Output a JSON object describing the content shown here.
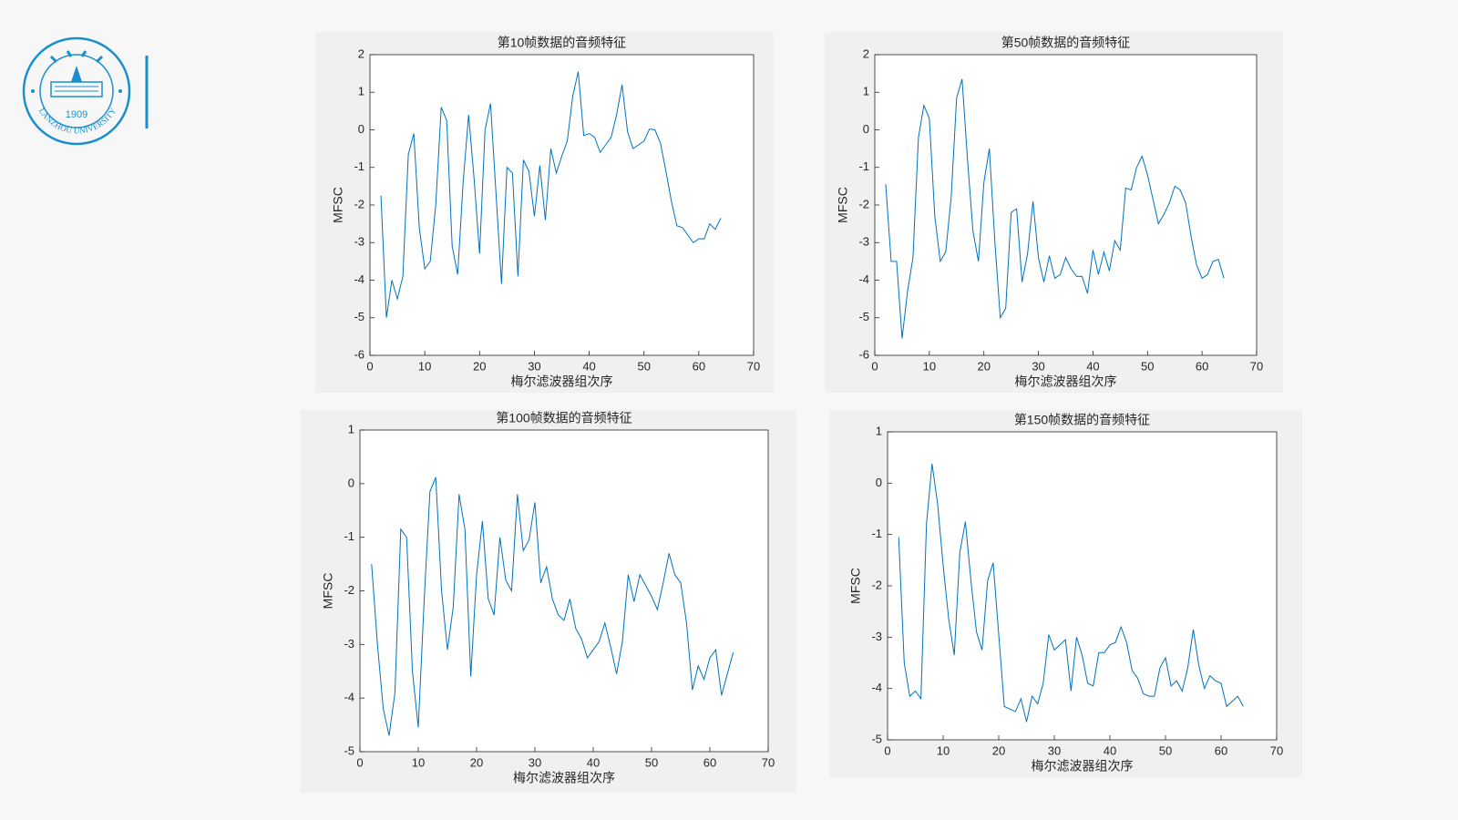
{
  "logo": {
    "year": "1909",
    "text": "LANZHOU    UNIVERSITY"
  },
  "chart_data": [
    {
      "type": "line",
      "title": "第10帧数据的音频特征",
      "xlabel": "梅尔滤波器组次序",
      "ylabel": "MFSC",
      "color": "#0072bd",
      "xlim": [
        0,
        70
      ],
      "xticks": [
        0,
        10,
        20,
        30,
        40,
        50,
        60,
        70
      ],
      "ylim": [
        -6,
        2
      ],
      "yticks": [
        -6,
        -5,
        -4,
        -3,
        -2,
        -1,
        0,
        1,
        2
      ],
      "x": [
        2,
        3,
        4,
        5,
        6,
        7,
        8,
        9,
        10,
        11,
        12,
        13,
        14,
        15,
        16,
        17,
        18,
        19,
        20,
        21,
        22,
        23,
        24,
        25,
        26,
        27,
        28,
        29,
        30,
        31,
        32,
        33,
        34,
        35,
        36,
        37,
        38,
        39,
        40,
        41,
        42,
        43,
        44,
        45,
        46,
        47,
        48,
        49,
        50,
        51,
        52,
        53,
        54,
        55,
        56,
        57,
        58,
        59,
        60,
        61,
        62,
        63,
        64
      ],
      "values": [
        -1.75,
        -5.0,
        -4.0,
        -4.5,
        -3.9,
        -0.65,
        -0.1,
        -2.6,
        -3.7,
        -3.5,
        -2.0,
        0.6,
        0.25,
        -3.1,
        -3.85,
        -1.4,
        0.4,
        -1.3,
        -3.3,
        0.0,
        0.7,
        -1.7,
        -4.1,
        -1.0,
        -1.15,
        -3.9,
        -0.8,
        -1.1,
        -2.3,
        -0.95,
        -2.4,
        -0.5,
        -1.15,
        -0.7,
        -0.3,
        0.9,
        1.55,
        -0.15,
        -0.1,
        -0.2,
        -0.6,
        -0.4,
        -0.2,
        0.4,
        1.2,
        -0.05,
        -0.5,
        -0.4,
        -0.3,
        0.02,
        0.0,
        -0.35,
        -1.1,
        -1.9,
        -2.55,
        -2.6,
        -2.8,
        -3.0,
        -2.9,
        -2.9,
        -2.5,
        -2.65,
        -2.35
      ]
    },
    {
      "type": "line",
      "title": "第50帧数据的音频特征",
      "xlabel": "梅尔滤波器组次序",
      "ylabel": "MFSC",
      "color": "#0072bd",
      "xlim": [
        0,
        70
      ],
      "xticks": [
        0,
        10,
        20,
        30,
        40,
        50,
        60,
        70
      ],
      "ylim": [
        -6,
        2
      ],
      "yticks": [
        -6,
        -5,
        -4,
        -3,
        -2,
        -1,
        0,
        1,
        2
      ],
      "x": [
        2,
        3,
        4,
        5,
        6,
        7,
        8,
        9,
        10,
        11,
        12,
        13,
        14,
        15,
        16,
        17,
        18,
        19,
        20,
        21,
        22,
        23,
        24,
        25,
        26,
        27,
        28,
        29,
        30,
        31,
        32,
        33,
        34,
        35,
        36,
        37,
        38,
        39,
        40,
        41,
        42,
        43,
        44,
        45,
        46,
        47,
        48,
        49,
        50,
        51,
        52,
        53,
        54,
        55,
        56,
        57,
        58,
        59,
        60,
        61,
        62,
        63,
        64
      ],
      "values": [
        -1.45,
        -3.5,
        -3.5,
        -5.55,
        -4.3,
        -3.4,
        -0.2,
        0.65,
        0.3,
        -2.3,
        -3.5,
        -3.25,
        -1.8,
        0.85,
        1.35,
        -0.8,
        -2.7,
        -3.5,
        -1.4,
        -0.5,
        -2.95,
        -5.0,
        -4.75,
        -2.2,
        -2.1,
        -4.05,
        -3.3,
        -1.9,
        -3.4,
        -4.05,
        -3.35,
        -3.95,
        -3.85,
        -3.4,
        -3.7,
        -3.9,
        -3.9,
        -4.35,
        -3.2,
        -3.85,
        -3.25,
        -3.75,
        -2.95,
        -3.2,
        -1.55,
        -1.6,
        -1.0,
        -0.7,
        -1.2,
        -1.85,
        -2.5,
        -2.25,
        -1.95,
        -1.5,
        -1.6,
        -1.95,
        -2.85,
        -3.6,
        -3.95,
        -3.85,
        -3.5,
        -3.45,
        -3.95
      ]
    },
    {
      "type": "line",
      "title": "第100帧数据的音频特征",
      "xlabel": "梅尔滤波器组次序",
      "ylabel": "MFSC",
      "color": "#0072bd",
      "xlim": [
        0,
        70
      ],
      "xticks": [
        0,
        10,
        20,
        30,
        40,
        50,
        60,
        70
      ],
      "ylim": [
        -5,
        1
      ],
      "yticks": [
        -5,
        -4,
        -3,
        -2,
        -1,
        0,
        1
      ],
      "x": [
        2,
        3,
        4,
        5,
        6,
        7,
        8,
        9,
        10,
        11,
        12,
        13,
        14,
        15,
        16,
        17,
        18,
        19,
        20,
        21,
        22,
        23,
        24,
        25,
        26,
        27,
        28,
        29,
        30,
        31,
        32,
        33,
        34,
        35,
        36,
        37,
        38,
        39,
        40,
        41,
        42,
        43,
        44,
        45,
        46,
        47,
        48,
        49,
        50,
        51,
        52,
        53,
        54,
        55,
        56,
        57,
        58,
        59,
        60,
        61,
        62,
        63,
        64
      ],
      "values": [
        -1.5,
        -3.0,
        -4.2,
        -4.7,
        -3.9,
        -0.85,
        -1.0,
        -3.5,
        -4.55,
        -2.2,
        -0.15,
        0.12,
        -2.0,
        -3.1,
        -2.3,
        -0.2,
        -0.85,
        -3.6,
        -1.7,
        -0.7,
        -2.15,
        -2.45,
        -1.0,
        -1.8,
        -2.0,
        -0.2,
        -1.25,
        -1.05,
        -0.35,
        -1.85,
        -1.55,
        -2.15,
        -2.45,
        -2.55,
        -2.15,
        -2.7,
        -2.9,
        -3.25,
        -3.1,
        -2.95,
        -2.6,
        -3.05,
        -3.55,
        -2.95,
        -1.7,
        -2.2,
        -1.7,
        -1.9,
        -2.1,
        -2.35,
        -1.85,
        -1.3,
        -1.7,
        -1.85,
        -2.6,
        -3.85,
        -3.4,
        -3.65,
        -3.25,
        -3.1,
        -3.95,
        -3.55,
        -3.15
      ]
    },
    {
      "type": "line",
      "title": "第150帧数据的音频特征",
      "xlabel": "梅尔滤波器组次序",
      "ylabel": "MFSC",
      "color": "#0072bd",
      "xlim": [
        0,
        70
      ],
      "xticks": [
        0,
        10,
        20,
        30,
        40,
        50,
        60,
        70
      ],
      "ylim": [
        -5,
        1
      ],
      "yticks": [
        -5,
        -4,
        -3,
        -2,
        -1,
        0,
        1
      ],
      "x": [
        2,
        3,
        4,
        5,
        6,
        7,
        8,
        9,
        10,
        11,
        12,
        13,
        14,
        15,
        16,
        17,
        18,
        19,
        20,
        21,
        22,
        23,
        24,
        25,
        26,
        27,
        28,
        29,
        30,
        31,
        32,
        33,
        34,
        35,
        36,
        37,
        38,
        39,
        40,
        41,
        42,
        43,
        44,
        45,
        46,
        47,
        48,
        49,
        50,
        51,
        52,
        53,
        54,
        55,
        56,
        57,
        58,
        59,
        60,
        61,
        62,
        63,
        64
      ],
      "values": [
        -1.05,
        -3.5,
        -4.15,
        -4.05,
        -4.2,
        -0.8,
        0.38,
        -0.4,
        -1.6,
        -2.65,
        -3.35,
        -1.35,
        -0.75,
        -1.9,
        -2.9,
        -3.25,
        -1.9,
        -1.55,
        -2.95,
        -4.35,
        -4.4,
        -4.45,
        -4.2,
        -4.65,
        -4.15,
        -4.3,
        -3.9,
        -2.95,
        -3.25,
        -3.15,
        -3.05,
        -4.05,
        -3.0,
        -3.35,
        -3.9,
        -3.95,
        -3.3,
        -3.3,
        -3.15,
        -3.1,
        -2.8,
        -3.1,
        -3.65,
        -3.8,
        -4.1,
        -4.15,
        -4.15,
        -3.6,
        -3.4,
        -3.95,
        -3.85,
        -4.05,
        -3.6,
        -2.85,
        -3.55,
        -4.0,
        -3.75,
        -3.85,
        -3.9,
        -4.35,
        -4.25,
        -4.15,
        -4.35
      ]
    }
  ]
}
